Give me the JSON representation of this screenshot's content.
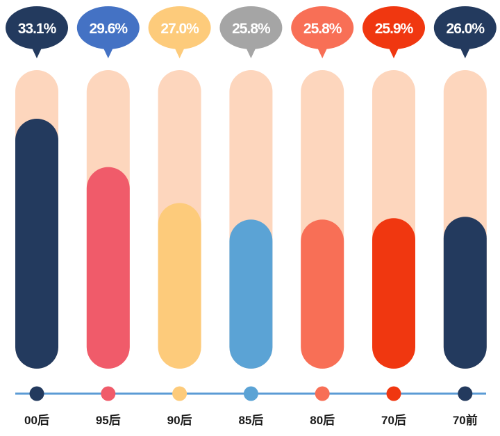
{
  "chart_data": {
    "type": "bar",
    "title": "",
    "xlabel": "",
    "ylabel": "",
    "ylim": [
      0,
      40
    ],
    "categories": [
      "00后",
      "95后",
      "90后",
      "85后",
      "80后",
      "70后",
      "70前"
    ],
    "values": [
      33.1,
      29.6,
      27.0,
      25.8,
      25.8,
      25.9,
      26.0
    ],
    "value_labels": [
      "33.1%",
      "29.6%",
      "27.0%",
      "25.8%",
      "25.8%",
      "25.9%",
      "26.0%"
    ],
    "grid": false,
    "legend": "none"
  },
  "colors": {
    "track": "#FDD6BD",
    "axis_line": "#5B9BD5",
    "bars": [
      "#233A5E",
      "#F05B6A",
      "#FDCB7B",
      "#5BA3D5",
      "#F86F56",
      "#F03710",
      "#233A5E"
    ],
    "bubbles": [
      "#233A5E",
      "#4472C4",
      "#FDCB7B",
      "#A5A5A5",
      "#F86F56",
      "#F03710",
      "#233A5E"
    ]
  }
}
